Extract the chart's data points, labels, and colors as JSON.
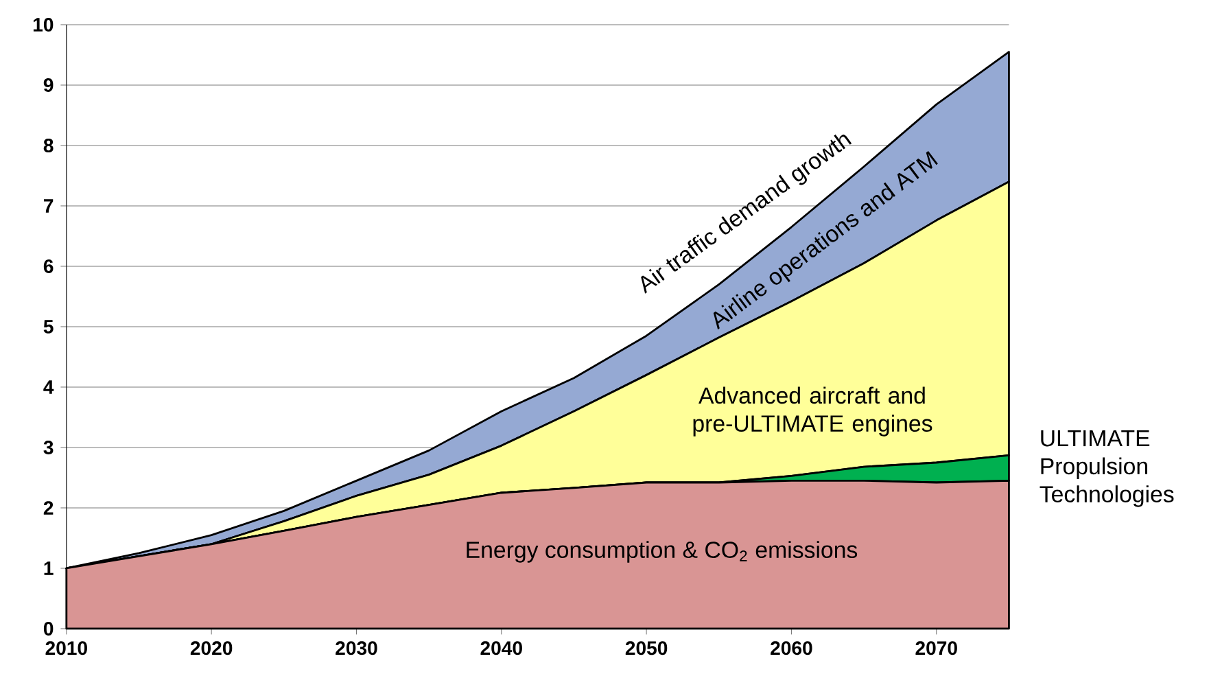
{
  "chart_data": {
    "type": "area",
    "stacked": true,
    "x": [
      2010,
      2015,
      2020,
      2025,
      2030,
      2035,
      2040,
      2045,
      2050,
      2055,
      2060,
      2065,
      2070,
      2075
    ],
    "series": [
      {
        "color": "#d99594",
        "values": [
          1.0,
          1.2,
          1.4,
          1.62,
          1.85,
          2.05,
          2.25,
          2.33,
          2.42,
          2.42,
          2.45,
          2.45,
          2.42,
          2.45
        ]
      },
      {
        "color": "#00b050",
        "values": [
          0,
          0,
          0,
          0,
          0,
          0,
          0,
          0,
          0,
          0,
          0.08,
          0.23,
          0.33,
          0.42
        ]
      },
      {
        "color": "#ffff99",
        "values": [
          0,
          0,
          0,
          0.16,
          0.35,
          0.5,
          0.78,
          1.27,
          1.78,
          2.4,
          2.89,
          3.37,
          4.01,
          4.53
        ]
      },
      {
        "color": "#95a9d3",
        "values": [
          0,
          0.05,
          0.15,
          0.17,
          0.25,
          0.4,
          0.57,
          0.55,
          0.65,
          0.88,
          1.23,
          1.6,
          1.92,
          2.15
        ]
      }
    ],
    "xlim": [
      2010,
      2075
    ],
    "ylim": [
      0,
      10
    ],
    "xticks": [
      2010,
      2020,
      2030,
      2040,
      2050,
      2060,
      2070
    ],
    "yticks": [
      0,
      1,
      2,
      3,
      4,
      5,
      6,
      7,
      8,
      9,
      10
    ],
    "grid": "y",
    "annotations": [
      "Energy consumption & CO$_{2}$ emissions",
      "Advanced aircraft and pre-ULTIMATE engines",
      "Airline operations and ATM",
      "Air traffic demand growth",
      {
        "text": "ULTIMATE Propulsion Technologies",
        "x": 2075,
        "y": 2.65
      }
    ]
  }
}
